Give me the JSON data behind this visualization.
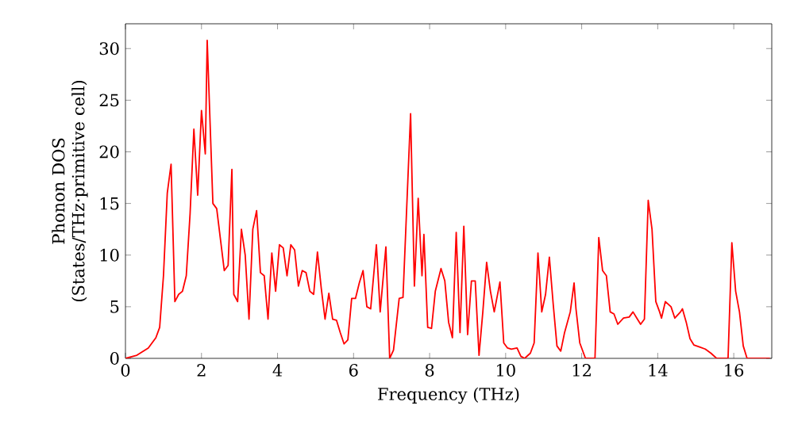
{
  "chart_data": {
    "type": "line",
    "xlabel": "Frequency (THz)",
    "ylabel": "Phonon DOS (States/THz·primitive cell)",
    "xlim": [
      0,
      17
    ],
    "ylim": [
      0,
      32.4
    ],
    "xticks": [
      0,
      2,
      4,
      6,
      8,
      10,
      12,
      14,
      16
    ],
    "yticks": [
      0,
      5,
      10,
      15,
      20,
      25,
      30
    ],
    "marker": "none",
    "line_style": "solid",
    "series": [
      {
        "color": "#ff0000",
        "x": [
          0,
          0.3,
          0.6,
          0.8,
          0.9,
          1.0,
          1.1,
          1.2,
          1.3,
          1.4,
          1.5,
          1.6,
          1.7,
          1.8,
          1.9,
          2.0,
          2.1,
          2.15,
          2.3,
          2.4,
          2.6,
          2.7,
          2.8,
          2.85,
          2.95,
          3.05,
          3.15,
          3.25,
          3.35,
          3.45,
          3.55,
          3.65,
          3.75,
          3.85,
          3.95,
          4.05,
          4.15,
          4.25,
          4.35,
          4.45,
          4.55,
          4.65,
          4.75,
          4.85,
          4.95,
          5.05,
          5.15,
          5.25,
          5.35,
          5.45,
          5.55,
          5.65,
          5.75,
          5.85,
          5.95,
          6.05,
          6.15,
          6.25,
          6.35,
          6.45,
          6.6,
          6.7,
          6.85,
          6.95,
          7.05,
          7.2,
          7.3,
          7.5,
          7.6,
          7.7,
          7.8,
          7.85,
          7.95,
          8.05,
          8.15,
          8.3,
          8.4,
          8.5,
          8.6,
          8.7,
          8.8,
          8.9,
          9.0,
          9.1,
          9.2,
          9.3,
          9.4,
          9.5,
          9.6,
          9.7,
          9.85,
          9.95,
          10.05,
          10.15,
          10.3,
          10.4,
          10.5,
          10.65,
          10.75,
          10.85,
          10.95,
          11.05,
          11.15,
          11.25,
          11.35,
          11.45,
          11.55,
          11.7,
          11.8,
          11.85,
          11.95,
          12.1,
          12.35,
          12.45,
          12.55,
          12.65,
          12.75,
          12.85,
          12.95,
          13.1,
          13.25,
          13.35,
          13.45,
          13.55,
          13.65,
          13.75,
          13.85,
          13.95,
          14.05,
          14.1,
          14.2,
          14.35,
          14.45,
          14.6,
          14.65,
          14.75,
          14.85,
          14.95,
          15.1,
          15.25,
          15.4,
          15.55,
          15.85,
          15.95,
          16.05,
          16.15,
          16.25,
          16.35,
          16.95
        ],
        "values": [
          0,
          0.3,
          1,
          2,
          3,
          8,
          16,
          18.8,
          5.5,
          6.2,
          6.5,
          8,
          14,
          22.2,
          15.8,
          24,
          19.8,
          30.8,
          15,
          14.5,
          8.5,
          9,
          18.3,
          6.2,
          5.5,
          12.5,
          10,
          3.8,
          12.5,
          14.3,
          8.3,
          8,
          3.8,
          10.2,
          6.5,
          11,
          10.7,
          8,
          11,
          10.5,
          7,
          8.5,
          8.3,
          6.5,
          6.2,
          10.3,
          6.8,
          3.8,
          6.3,
          3.8,
          3.7,
          2.5,
          1.4,
          1.8,
          5.8,
          5.8,
          7.3,
          8.5,
          5,
          4.8,
          11,
          4.5,
          10.8,
          0,
          0.8,
          5.8,
          5.9,
          23.7,
          7,
          15.5,
          8,
          12,
          3,
          2.9,
          6.5,
          8.7,
          7.5,
          3.5,
          2,
          12.2,
          2.5,
          12.8,
          2.3,
          7.5,
          7.5,
          0.3,
          4.5,
          9.3,
          6.5,
          4.5,
          7.4,
          1.5,
          1,
          0.9,
          1,
          0.2,
          0,
          0.5,
          1.5,
          10.2,
          4.5,
          6.2,
          9.8,
          5.3,
          1.2,
          0.7,
          2.5,
          4.5,
          7.3,
          4.8,
          1.5,
          0,
          0,
          11.7,
          8.5,
          8,
          4.5,
          4.3,
          3.3,
          3.9,
          4,
          4.5,
          3.9,
          3.3,
          3.8,
          15.3,
          12.5,
          5.5,
          4.5,
          3.9,
          5.5,
          5,
          3.9,
          4.5,
          4.8,
          3.5,
          1.9,
          1.3,
          1.1,
          0.9,
          0.5,
          0,
          0,
          11.2,
          6.5,
          4.5,
          1.2,
          0,
          0
        ]
      }
    ]
  }
}
